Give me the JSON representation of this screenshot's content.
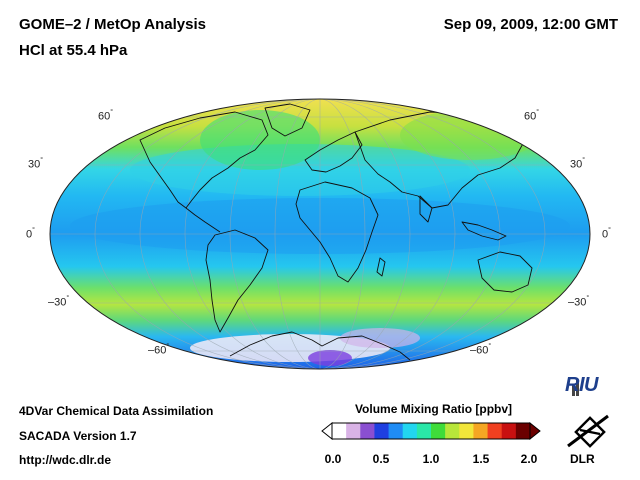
{
  "header": {
    "title": "GOME–2 / MetOp Analysis",
    "subtitle": "HCl at 55.4 hPa",
    "datetime": "Sep 09, 2009, 12:00 GMT"
  },
  "map": {
    "projection": "Mollweide",
    "lat_labels_left": [
      "60",
      "30",
      "0",
      "–30",
      "–60"
    ],
    "lat_labels_right": [
      "60",
      "30",
      "0",
      "–30",
      "–60"
    ],
    "degree_symbol": "°"
  },
  "footer": {
    "line1": "4DVar Chemical Data Assimilation",
    "line2": "SACADA Version 1.7",
    "line3": "http://wdc.dlr.de"
  },
  "colorbar": {
    "title": "Volume Mixing Ratio [ppbv]",
    "ticks": [
      "0.0",
      "0.5",
      "1.0",
      "1.5",
      "2.0"
    ],
    "min": 0.0,
    "max": 2.0,
    "colors": [
      "#ffffff",
      "#d9b3e6",
      "#8a4fd1",
      "#1f3fe0",
      "#1f8cf5",
      "#22d6f0",
      "#2ae7a8",
      "#3fdc3a",
      "#b8e63a",
      "#f2e63a",
      "#f5a623",
      "#f04020",
      "#c81010",
      "#6b0000"
    ]
  },
  "logos": {
    "riu": "RIU",
    "dlr": "DLR"
  }
}
